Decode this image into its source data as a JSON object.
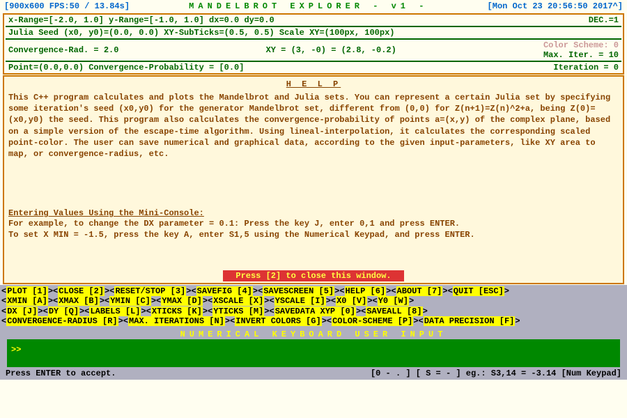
{
  "topbar": {
    "left": "[900x600 FPS:50 / 13.84s]",
    "title": "MANDELBROT  EXPLORER  - v1 -",
    "right": "[Mon Oct 23 20:56:50 2017^]"
  },
  "info": {
    "row1_left": "x-Range=[-2.0, 1.0] y-Range=[-1.0, 1.0] dx=0.0 dy=0.0",
    "row1_right": "DEC.=1",
    "row2": "Julia Seed (x0, y0)=(0.0, 0.0) XY-SubTicks=(0.5, 0.5) Scale XY=(100px, 100px)",
    "row3_left": "Convergence-Rad. = 2.0",
    "row3_mid": "XY = (3, -0) = (2.8, -0.2)",
    "row3_colorscheme": "Color Scheme: 0",
    "row3_maxiter": "Max. Iter. = 10",
    "row4_left": "Point=(0.0,0.0)  Convergence-Probability = [0.0]",
    "row4_right": "Iteration = 0"
  },
  "help": {
    "title": "H E L P",
    "body": "This C++ program calculates and plots the Mandelbrot and Julia sets. You can represent a certain Julia set by specifying some iteration's seed (x0,y0) for the generator Mandelbrot set, different from (0,0) for Z(n+1)=Z(n)^2+a, being Z(0)=(x0,y0) the seed. This program also calculates the convergence-probability of points a=(x,y) of the complex plane, based on a simple version of the escape-time algorithm. Using lineal-interpolation, it calculates the corresponding scaled point-color. The user can save numerical and graphical data, according to the given input-parameters, like XY area to map, or convergence-radius, etc.",
    "sub": "Entering Values Using the Mini-Console:",
    "example1": "For example, to change the DX parameter = 0.1: Press the key J, enter 0,1 and press ENTER.",
    "example2": "To set X MIN = -1.5, press the key A, enter S1,5 using the Numerical Keypad, and press ENTER.",
    "close": "Press [2] to close this window."
  },
  "commands": {
    "line1": [
      "PLOT [1]",
      "CLOSE [2]",
      "RESET/STOP [3]",
      "SAVEFIG [4]",
      "SAVESCREEN [5]",
      "HELP [6]",
      "ABOUT [7]",
      "QUIT [ESC]"
    ],
    "line2": [
      "XMIN [A]",
      "XMAX [B]",
      "YMIN [C]",
      "YMAX [D]",
      "XSCALE [X]",
      "YSCALE [I]",
      "X0 [V]",
      "Y0 [W]"
    ],
    "line3": [
      "DX [J]",
      "DY [Q]",
      "LABELS [L]",
      "XTICKS [K]",
      "YTICKS [M]",
      "SAVEDATA XYP [0]",
      "SAVEALL [8]"
    ],
    "line4": [
      "CONVERGENCE-RADIUS [R]",
      "MAX. ITERATIONS [N]",
      "INVERT COLORS [G]",
      "COLOR-SCHEME [P]",
      "DATA PRECISION [F]"
    ]
  },
  "numinput": {
    "title": "NUMERICAL  KEYBOARD  USER  INPUT",
    "prompt": ">>"
  },
  "footer": {
    "left": "Press ENTER to accept.",
    "right": "[0 - . ] [ S = - ] eg.: S3,14 = -3.14 [Num Keypad]"
  }
}
